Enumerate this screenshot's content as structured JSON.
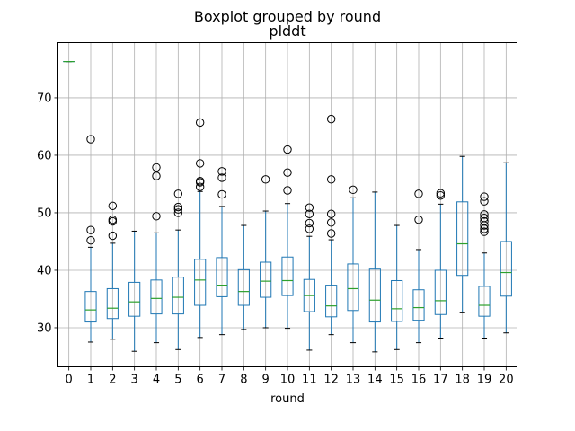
{
  "figure": {
    "suptitle": "Boxplot grouped by round",
    "title": "plddt"
  },
  "chart_data": {
    "type": "box",
    "title": "plddt",
    "suptitle": "Boxplot grouped by round",
    "xlabel": "round",
    "ylabel": "",
    "categories": [
      "0",
      "1",
      "2",
      "3",
      "4",
      "5",
      "6",
      "7",
      "8",
      "9",
      "10",
      "11",
      "12",
      "13",
      "14",
      "15",
      "16",
      "17",
      "18",
      "19",
      "20"
    ],
    "ylim": [
      23.2,
      79.6
    ],
    "yticks": [
      30,
      40,
      50,
      60,
      70
    ],
    "grid": true,
    "colors": {
      "box": "#1f77b4",
      "median": "#2ca02c",
      "outlier": "#000000",
      "grid": "#b0b0b0"
    },
    "boxes": [
      {
        "round": "0",
        "whislo": 76.3,
        "q1": 76.3,
        "med": 76.3,
        "q3": 76.3,
        "whishi": 76.3,
        "fliers": []
      },
      {
        "round": "1",
        "whislo": 27.5,
        "q1": 31.0,
        "med": 33.1,
        "q3": 36.3,
        "whishi": 44.0,
        "fliers": [
          45.2,
          47.0,
          62.8
        ]
      },
      {
        "round": "2",
        "whislo": 28.0,
        "q1": 31.6,
        "med": 33.4,
        "q3": 36.8,
        "whishi": 44.7,
        "fliers": [
          46.0,
          48.5,
          48.8,
          51.2
        ]
      },
      {
        "round": "3",
        "whislo": 25.9,
        "q1": 32.0,
        "med": 34.5,
        "q3": 37.9,
        "whishi": 46.8,
        "fliers": []
      },
      {
        "round": "4",
        "whislo": 27.4,
        "q1": 32.4,
        "med": 35.1,
        "q3": 38.3,
        "whishi": 46.5,
        "fliers": [
          49.4,
          56.4,
          57.9
        ]
      },
      {
        "round": "5",
        "whislo": 26.2,
        "q1": 32.4,
        "med": 35.3,
        "q3": 38.8,
        "whishi": 47.0,
        "fliers": [
          50.0,
          50.6,
          51.0,
          53.3
        ]
      },
      {
        "round": "6",
        "whislo": 28.3,
        "q1": 33.9,
        "med": 38.3,
        "q3": 41.9,
        "whishi": 53.7,
        "fliers": [
          54.5,
          55.3,
          55.5,
          58.6,
          65.7
        ]
      },
      {
        "round": "7",
        "whislo": 28.8,
        "q1": 35.4,
        "med": 37.4,
        "q3": 42.2,
        "whishi": 51.1,
        "fliers": [
          53.2,
          56.1,
          57.2
        ]
      },
      {
        "round": "8",
        "whislo": 29.7,
        "q1": 33.9,
        "med": 36.3,
        "q3": 40.1,
        "whishi": 47.8,
        "fliers": []
      },
      {
        "round": "9",
        "whislo": 30.0,
        "q1": 35.3,
        "med": 38.1,
        "q3": 41.4,
        "whishi": 50.3,
        "fliers": [
          55.8
        ]
      },
      {
        "round": "10",
        "whislo": 29.9,
        "q1": 35.6,
        "med": 38.2,
        "q3": 42.3,
        "whishi": 51.6,
        "fliers": [
          53.9,
          57.0,
          61.0
        ]
      },
      {
        "round": "11",
        "whislo": 26.1,
        "q1": 32.8,
        "med": 35.6,
        "q3": 38.4,
        "whishi": 45.9,
        "fliers": [
          47.2,
          48.2,
          49.8,
          50.9
        ]
      },
      {
        "round": "12",
        "whislo": 28.8,
        "q1": 31.9,
        "med": 33.8,
        "q3": 37.4,
        "whishi": 45.3,
        "fliers": [
          46.4,
          48.3,
          49.8,
          55.8,
          66.3
        ]
      },
      {
        "round": "13",
        "whislo": 27.4,
        "q1": 33.0,
        "med": 36.8,
        "q3": 41.1,
        "whishi": 52.6,
        "fliers": [
          54.0
        ]
      },
      {
        "round": "14",
        "whislo": 25.8,
        "q1": 31.0,
        "med": 34.8,
        "q3": 40.2,
        "whishi": 53.6,
        "fliers": []
      },
      {
        "round": "15",
        "whislo": 26.2,
        "q1": 31.1,
        "med": 33.3,
        "q3": 38.2,
        "whishi": 47.8,
        "fliers": []
      },
      {
        "round": "16",
        "whislo": 27.4,
        "q1": 31.3,
        "med": 33.5,
        "q3": 36.6,
        "whishi": 43.6,
        "fliers": [
          48.8,
          53.3
        ]
      },
      {
        "round": "17",
        "whislo": 28.2,
        "q1": 32.3,
        "med": 34.7,
        "q3": 40.0,
        "whishi": 51.5,
        "fliers": [
          53.0,
          53.4
        ]
      },
      {
        "round": "18",
        "whislo": 32.6,
        "q1": 39.1,
        "med": 44.6,
        "q3": 51.9,
        "whishi": 59.8,
        "fliers": []
      },
      {
        "round": "19",
        "whislo": 28.2,
        "q1": 32.0,
        "med": 33.9,
        "q3": 37.2,
        "whishi": 43.0,
        "fliers": [
          46.7,
          47.2,
          47.8,
          48.5,
          49.1,
          49.7,
          52.0,
          52.8
        ]
      },
      {
        "round": "20",
        "whislo": 29.1,
        "q1": 35.5,
        "med": 39.6,
        "q3": 45.0,
        "whishi": 58.7,
        "fliers": []
      }
    ]
  }
}
